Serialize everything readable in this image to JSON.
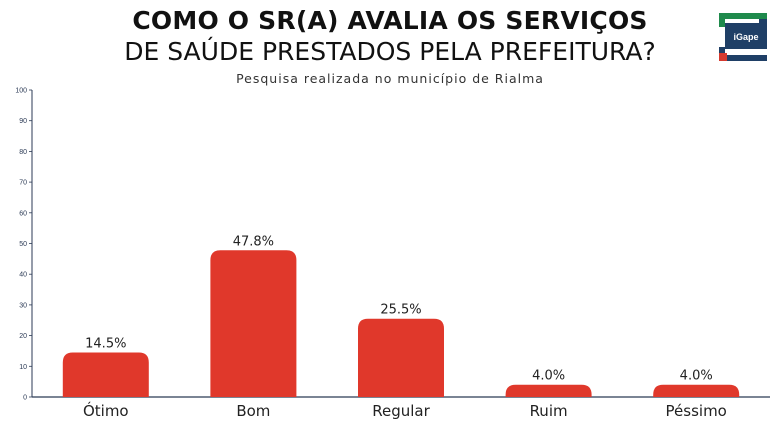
{
  "header": {
    "title_line1": "COMO O SR(A) AVALIA OS SERVIÇOS",
    "title_line2": "DE SAÚDE PRESTADOS PELA PREFEITURA?",
    "subtitle": "Pesquisa realizada no município de Rialma"
  },
  "logo": {
    "text": "iGape",
    "icon": "igape-logo-icon"
  },
  "colors": {
    "bar": "#e0382b",
    "axis": "#2b3a55"
  },
  "chart_data": {
    "type": "bar",
    "title": "COMO O SR(A) AVALIA OS SERVIÇOS DE SAÚDE PRESTADOS PELA PREFEITURA?",
    "subtitle": "Pesquisa realizada no município de Rialma",
    "categories": [
      "Ótimo",
      "Bom",
      "Regular",
      "Ruim",
      "Péssimo"
    ],
    "values": [
      14.5,
      47.8,
      25.5,
      4.0,
      4.0
    ],
    "value_labels": [
      "14.5%",
      "47.8%",
      "25.5%",
      "4.0%",
      "4.0%"
    ],
    "ylim": [
      0,
      100
    ],
    "yticks": [
      0,
      10,
      20,
      30,
      40,
      50,
      60,
      70,
      80,
      90,
      100
    ],
    "grid": false,
    "xlabel": "",
    "ylabel": ""
  }
}
